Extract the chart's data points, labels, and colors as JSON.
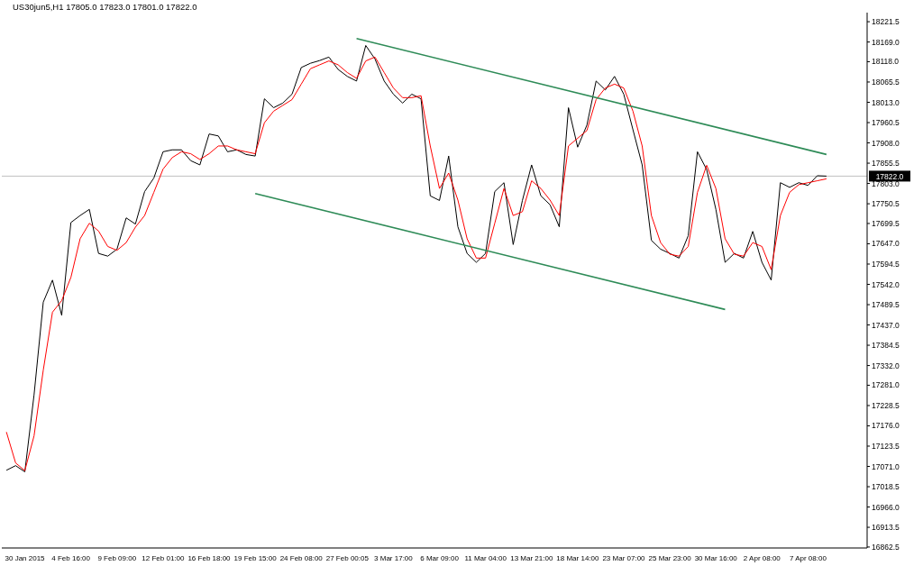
{
  "chart_data": {
    "type": "line",
    "title": "US30jun5,H1  17805.0 17823.0 17801.0 17822.0",
    "categories": [
      null,
      null,
      "30 Jan 2015",
      null,
      null,
      null,
      null,
      "4 Feb 16:00",
      null,
      null,
      null,
      null,
      "9 Feb 09:00",
      null,
      null,
      null,
      null,
      "12 Feb 01:00",
      null,
      null,
      null,
      null,
      "16 Feb 18:00",
      null,
      null,
      null,
      null,
      "19 Feb 15:00",
      null,
      null,
      null,
      null,
      "24 Feb 08:00",
      null,
      null,
      null,
      null,
      "27 Feb 00:05",
      null,
      null,
      null,
      null,
      "3 Mar 17:00",
      null,
      null,
      null,
      null,
      "6 Mar 09:00",
      null,
      null,
      null,
      null,
      "11 Mar 04:00",
      null,
      null,
      null,
      null,
      "13 Mar 21:00",
      null,
      null,
      null,
      null,
      "18 Mar 14:00",
      null,
      null,
      null,
      null,
      "23 Mar 07:00",
      null,
      null,
      null,
      null,
      "25 Mar 23:00",
      null,
      null,
      null,
      null,
      "30 Mar 16:00",
      null,
      null,
      null,
      null,
      "2 Apr 08:00",
      null,
      null,
      null,
      null,
      "7 Apr 08:00",
      null,
      null
    ],
    "ylim": [
      16860,
      18245
    ],
    "yticks": [
      {
        "value": 18221.5,
        "label": "18221.5"
      },
      {
        "value": 18169,
        "label": "18169.0"
      },
      {
        "value": 18118,
        "label": "18118.0"
      },
      {
        "value": 18065.5,
        "label": "18065.5"
      },
      {
        "value": 18013,
        "label": "18013.0"
      },
      {
        "value": 17960.5,
        "label": "17960.5"
      },
      {
        "value": 17908,
        "label": "17908.0"
      },
      {
        "value": 17855.5,
        "label": "17855.5"
      },
      {
        "value": 17803,
        "label": "17803.0"
      },
      {
        "value": 17750.5,
        "label": "17750.5"
      },
      {
        "value": 17699.5,
        "label": "17699.5"
      },
      {
        "value": 17647,
        "label": "17647.0"
      },
      {
        "value": 17594.5,
        "label": "17594.5"
      },
      {
        "value": 17542,
        "label": "17542.0"
      },
      {
        "value": 17489.5,
        "label": "17489.5"
      },
      {
        "value": 17437,
        "label": "17437.0"
      },
      {
        "value": 17384.5,
        "label": "17384.5"
      },
      {
        "value": 17332,
        "label": "17332.0"
      },
      {
        "value": 17281,
        "label": "17281.0"
      },
      {
        "value": 17228.5,
        "label": "17228.5"
      },
      {
        "value": 17176,
        "label": "17176.0"
      },
      {
        "value": 17123.5,
        "label": "17123.5"
      },
      {
        "value": 17071,
        "label": "17071.0"
      },
      {
        "value": 17018.5,
        "label": "17018.5"
      },
      {
        "value": 16966,
        "label": "16966.0"
      },
      {
        "value": 16913.5,
        "label": "16913.5"
      },
      {
        "value": 16862.5,
        "label": "16862.5"
      }
    ],
    "series": [
      {
        "color": "#000000",
        "values": [
          17061,
          17073,
          17057,
          17256,
          17496,
          17553,
          17462,
          17702,
          17720,
          17736,
          17622,
          17615,
          17633,
          17714,
          17698,
          17782,
          17817,
          17885,
          17890,
          17890,
          17862,
          17851,
          17931,
          17926,
          17885,
          17890,
          17878,
          17874,
          18022,
          17999,
          18011,
          18034,
          18103,
          18114,
          18121,
          18130,
          18098,
          18080,
          18068,
          18160,
          18125,
          18068,
          18034,
          18011,
          18034,
          18022,
          17771,
          17759,
          17874,
          17691,
          17622,
          17599,
          17622,
          17782,
          17805,
          17645,
          17759,
          17851,
          17771,
          17748,
          17691,
          17999,
          17897,
          17954,
          18068,
          18045,
          18080,
          18034,
          17942,
          17851,
          17656,
          17633,
          17622,
          17610,
          17668,
          17885,
          17839,
          17736,
          17599,
          17622,
          17610,
          17679,
          17599,
          17553,
          17805,
          17793,
          17805,
          17798,
          17823,
          17822
        ]
      },
      {
        "color": "#ff0000",
        "values": [
          17160,
          17080,
          17060,
          17150,
          17320,
          17470,
          17500,
          17560,
          17660,
          17700,
          17680,
          17640,
          17630,
          17650,
          17690,
          17720,
          17780,
          17840,
          17870,
          17885,
          17880,
          17865,
          17880,
          17900,
          17900,
          17890,
          17885,
          17880,
          17960,
          17990,
          18005,
          18020,
          18060,
          18100,
          18110,
          18120,
          18110,
          18090,
          18075,
          18120,
          18130,
          18090,
          18050,
          18025,
          18025,
          18030,
          17900,
          17790,
          17830,
          17760,
          17660,
          17610,
          17610,
          17700,
          17790,
          17720,
          17730,
          17810,
          17790,
          17760,
          17720,
          17900,
          17920,
          17940,
          18020,
          18050,
          18060,
          18050,
          17990,
          17900,
          17720,
          17650,
          17620,
          17615,
          17640,
          17780,
          17850,
          17790,
          17660,
          17620,
          17615,
          17650,
          17640,
          17580,
          17720,
          17780,
          17800,
          17805,
          17810,
          17815
        ]
      },
      {
        "color": "#2e8b57",
        "values": [
          null,
          null,
          null,
          null,
          null,
          null,
          null,
          null,
          null,
          null,
          null,
          null,
          null,
          null,
          null,
          null,
          null,
          null,
          null,
          null,
          null,
          null,
          null,
          null,
          null,
          null,
          null,
          null,
          null,
          null,
          null,
          null,
          null,
          null,
          null,
          null,
          null,
          null,
          18178,
          null,
          null,
          null,
          null,
          null,
          null,
          null,
          null,
          null,
          null,
          null,
          null,
          null,
          null,
          null,
          null,
          null,
          null,
          null,
          null,
          null,
          null,
          null,
          null,
          null,
          null,
          null,
          null,
          null,
          null,
          null,
          null,
          null,
          null,
          null,
          null,
          null,
          null,
          null,
          null,
          null,
          null,
          null,
          null,
          null,
          null,
          null,
          null,
          null,
          null,
          17878
        ]
      },
      {
        "color": "#2e8b57",
        "values": [
          null,
          null,
          null,
          null,
          null,
          null,
          null,
          null,
          null,
          null,
          null,
          null,
          null,
          null,
          null,
          null,
          null,
          null,
          null,
          null,
          null,
          null,
          null,
          null,
          null,
          null,
          null,
          17777,
          null,
          null,
          null,
          null,
          null,
          null,
          null,
          null,
          null,
          null,
          null,
          null,
          null,
          null,
          null,
          null,
          null,
          null,
          null,
          null,
          null,
          null,
          null,
          null,
          null,
          null,
          null,
          null,
          null,
          null,
          null,
          null,
          null,
          null,
          null,
          null,
          null,
          null,
          null,
          null,
          null,
          null,
          null,
          null,
          null,
          null,
          null,
          null,
          null,
          null,
          17477,
          null,
          null,
          null,
          null,
          null,
          null,
          null,
          null,
          null,
          null,
          null
        ]
      }
    ],
    "ref_lines": [
      {
        "axis": "y",
        "value": 17822,
        "label": "17822.0",
        "color": "#c0c0c0"
      }
    ],
    "marker": "none",
    "line_style": "solid"
  }
}
